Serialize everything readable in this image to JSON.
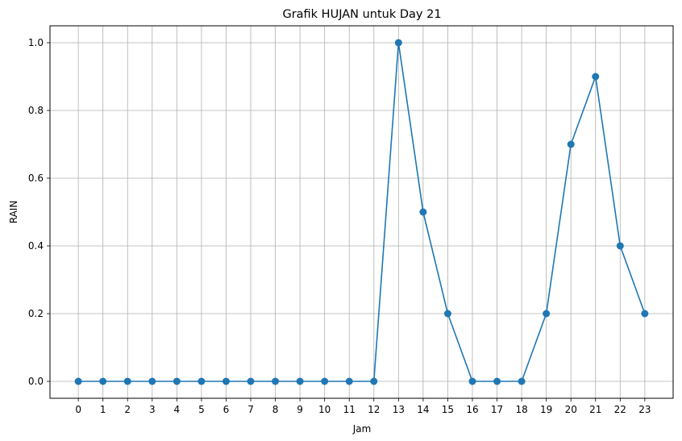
{
  "chart_data": {
    "type": "line",
    "title": "Grafik HUJAN untuk Day 21",
    "xlabel": "Jam",
    "ylabel": "RAIN",
    "x": [
      0,
      1,
      2,
      3,
      4,
      5,
      6,
      7,
      8,
      9,
      10,
      11,
      12,
      13,
      14,
      15,
      16,
      17,
      18,
      19,
      20,
      21,
      22,
      23
    ],
    "series": [
      {
        "values": [
          0,
          0,
          0,
          0,
          0,
          0,
          0,
          0,
          0,
          0,
          0,
          0,
          0,
          1.0,
          0.5,
          0.2,
          0,
          0,
          0,
          0.2,
          0.7,
          0.9,
          0.4,
          0.2
        ],
        "color": "#1f77b4",
        "marker": "circle"
      }
    ],
    "xticks": [
      "0",
      "1",
      "2",
      "3",
      "4",
      "5",
      "6",
      "7",
      "8",
      "9",
      "10",
      "11",
      "12",
      "13",
      "14",
      "15",
      "16",
      "17",
      "18",
      "19",
      "20",
      "21",
      "22",
      "23"
    ],
    "yticks": [
      "0.0",
      "0.2",
      "0.4",
      "0.6",
      "0.8",
      "1.0"
    ],
    "ytick_values": [
      0,
      0.2,
      0.4,
      0.6,
      0.8,
      1.0
    ],
    "xlim": [
      -1.15,
      24.15
    ],
    "ylim": [
      -0.05,
      1.05
    ],
    "grid": true,
    "legend": "none",
    "grid_color": "#b0b0b0"
  }
}
